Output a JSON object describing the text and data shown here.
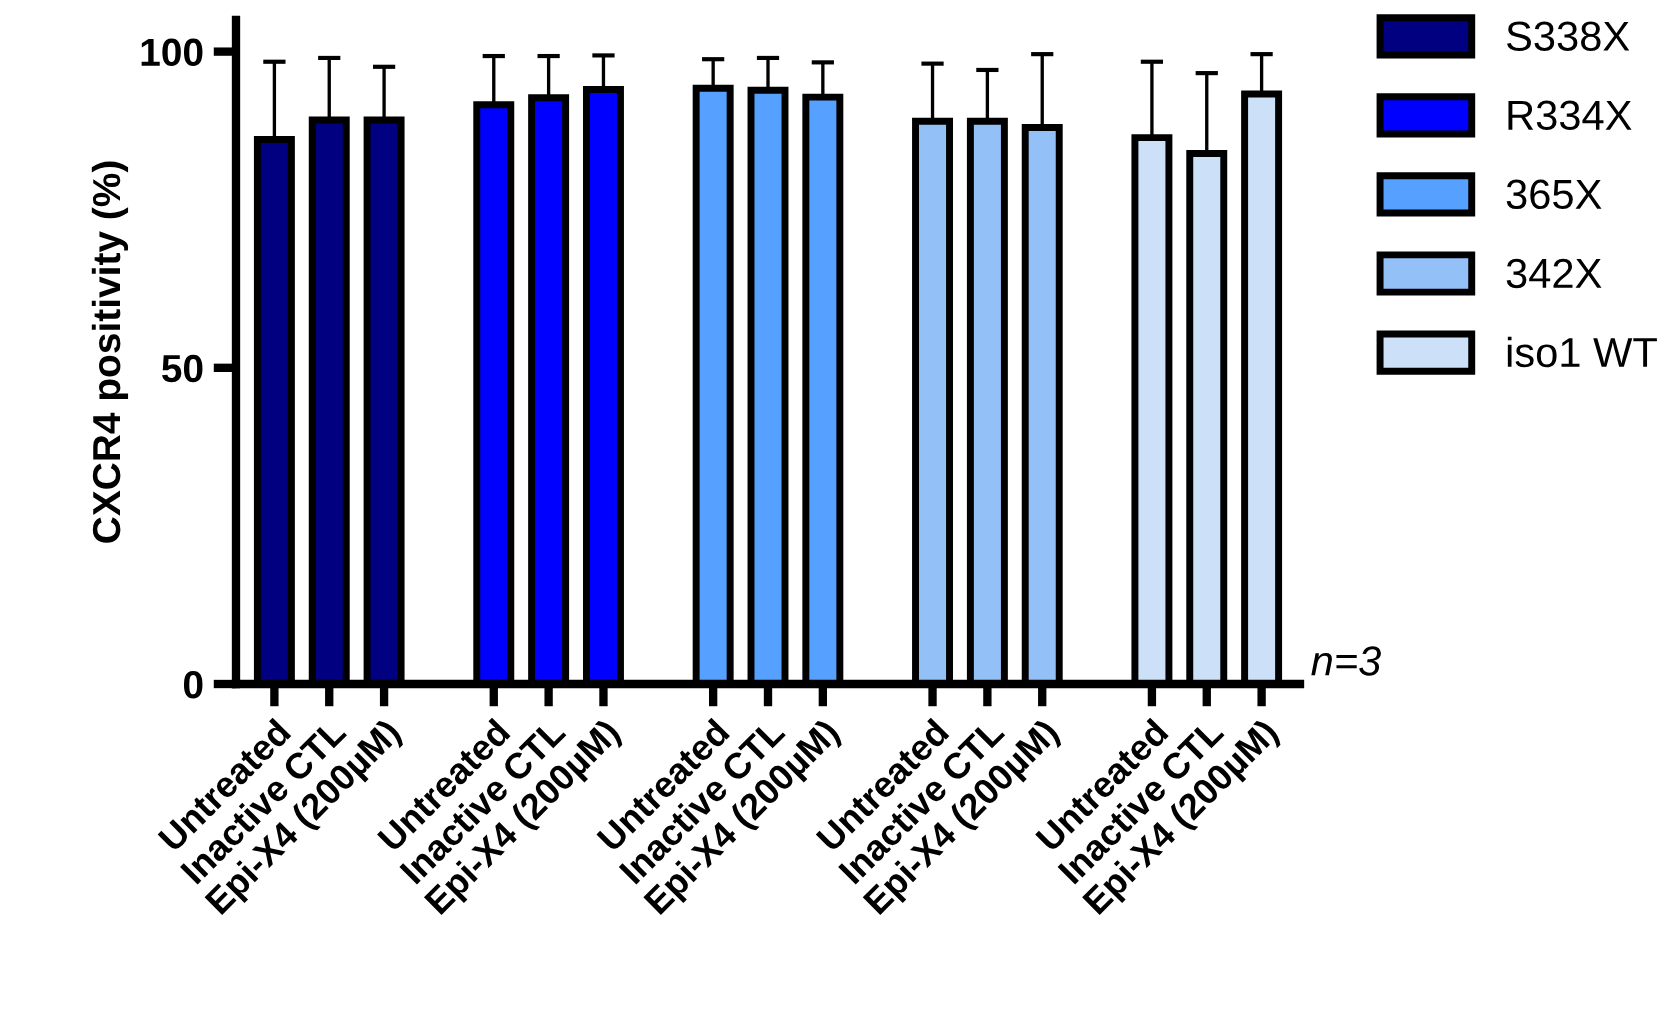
{
  "chart_data": {
    "type": "bar",
    "ylabel": "CXCR4 positivity (%)",
    "categories": [
      "Untreated",
      "Inactive CTL",
      "Epi-X4 (200µM)",
      null,
      "Untreated",
      "Inactive CTL",
      "Epi-X4 (200µM)",
      null,
      "Untreated",
      "Inactive CTL",
      "Epi-X4 (200µM)",
      null,
      "Untreated",
      "Inactive CTL",
      "Epi-X4 (200µM)",
      null,
      "Untreated",
      "Inactive CTL",
      "Epi-X4 (200µM)"
    ],
    "series": [
      {
        "name": "S338X",
        "color": "#000080",
        "values": [
          86.1,
          89.2,
          89.2,
          null,
          null,
          null,
          null,
          null,
          null,
          null,
          null,
          null,
          null,
          null,
          null,
          null,
          null,
          null,
          null
        ],
        "errors": [
          [
            86.1,
            98.4
          ],
          [
            89.2,
            99.0
          ],
          [
            89.2,
            97.6
          ],
          null,
          null,
          null,
          null,
          null,
          null,
          null,
          null,
          null,
          null,
          null,
          null,
          null,
          null,
          null,
          null
        ]
      },
      {
        "name": "R334X",
        "color": "#0000ff",
        "values": [
          null,
          null,
          null,
          null,
          91.6,
          92.7,
          94.0,
          null,
          null,
          null,
          null,
          null,
          null,
          null,
          null,
          null,
          null,
          null,
          null
        ],
        "errors": [
          null,
          null,
          null,
          null,
          [
            91.6,
            99.3
          ],
          [
            92.7,
            99.3
          ],
          [
            94.0,
            99.4
          ],
          null,
          null,
          null,
          null,
          null,
          null,
          null,
          null,
          null,
          null,
          null,
          null
        ]
      },
      {
        "name": "365X",
        "color": "#56a0ff",
        "values": [
          null,
          null,
          null,
          null,
          null,
          null,
          null,
          null,
          94.2,
          93.9,
          92.8,
          null,
          null,
          null,
          null,
          null,
          null,
          null,
          null
        ],
        "errors": [
          null,
          null,
          null,
          null,
          null,
          null,
          null,
          null,
          [
            94.2,
            98.8
          ],
          [
            93.9,
            99.0
          ],
          [
            92.8,
            98.3
          ],
          null,
          null,
          null,
          null,
          null,
          null,
          null,
          null
        ]
      },
      {
        "name": "342X",
        "color": "#94c0f8",
        "values": [
          null,
          null,
          null,
          null,
          null,
          null,
          null,
          null,
          null,
          null,
          null,
          null,
          89.0,
          89.0,
          88.0,
          null,
          null,
          null,
          null
        ],
        "errors": [
          null,
          null,
          null,
          null,
          null,
          null,
          null,
          null,
          null,
          null,
          null,
          null,
          [
            89.0,
            98.1
          ],
          [
            89.0,
            97.1
          ],
          [
            88.0,
            99.6
          ],
          null,
          null,
          null,
          null
        ]
      },
      {
        "name": "iso1 WT",
        "color": "#cce0f8",
        "values": [
          null,
          null,
          null,
          null,
          null,
          null,
          null,
          null,
          null,
          null,
          null,
          null,
          null,
          null,
          null,
          null,
          86.4,
          83.9,
          93.3
        ],
        "errors": [
          null,
          null,
          null,
          null,
          null,
          null,
          null,
          null,
          null,
          null,
          null,
          null,
          null,
          null,
          null,
          null,
          [
            86.4,
            98.4
          ],
          [
            83.9,
            96.6
          ],
          [
            93.3,
            99.6
          ]
        ]
      }
    ],
    "ylim": [
      0,
      105
    ],
    "yticks": [
      0,
      50,
      100
    ],
    "grid": false,
    "legend": "top right",
    "annotations": [
      "n=3"
    ]
  }
}
